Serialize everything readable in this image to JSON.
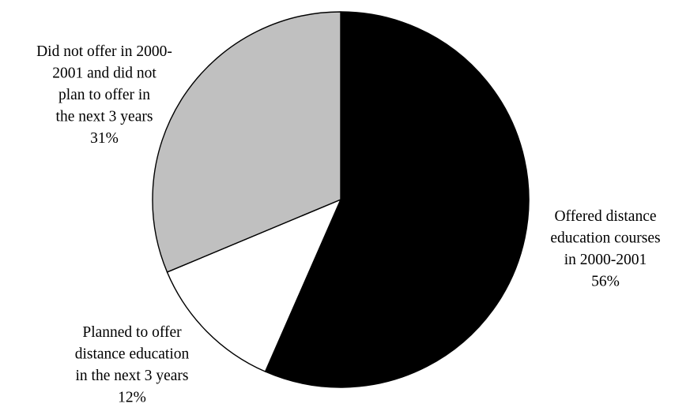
{
  "chart_data": {
    "type": "pie",
    "slices": [
      {
        "label_lines": [
          "Offered distance",
          "education courses",
          "in 2000-2001"
        ],
        "value_label": "56%",
        "value": 56,
        "color": "#000000"
      },
      {
        "label_lines": [
          "Planned to offer",
          "distance education",
          "in the next 3 years"
        ],
        "value_label": "12%",
        "value": 12,
        "color": "#ffffff"
      },
      {
        "label_lines": [
          "Did not offer in 2000-",
          "2001 and did not",
          "plan to offer in",
          "the next 3 years"
        ],
        "value_label": "31%",
        "value": 31,
        "color": "#c0c0c0"
      }
    ],
    "outline_color": "#000000"
  }
}
